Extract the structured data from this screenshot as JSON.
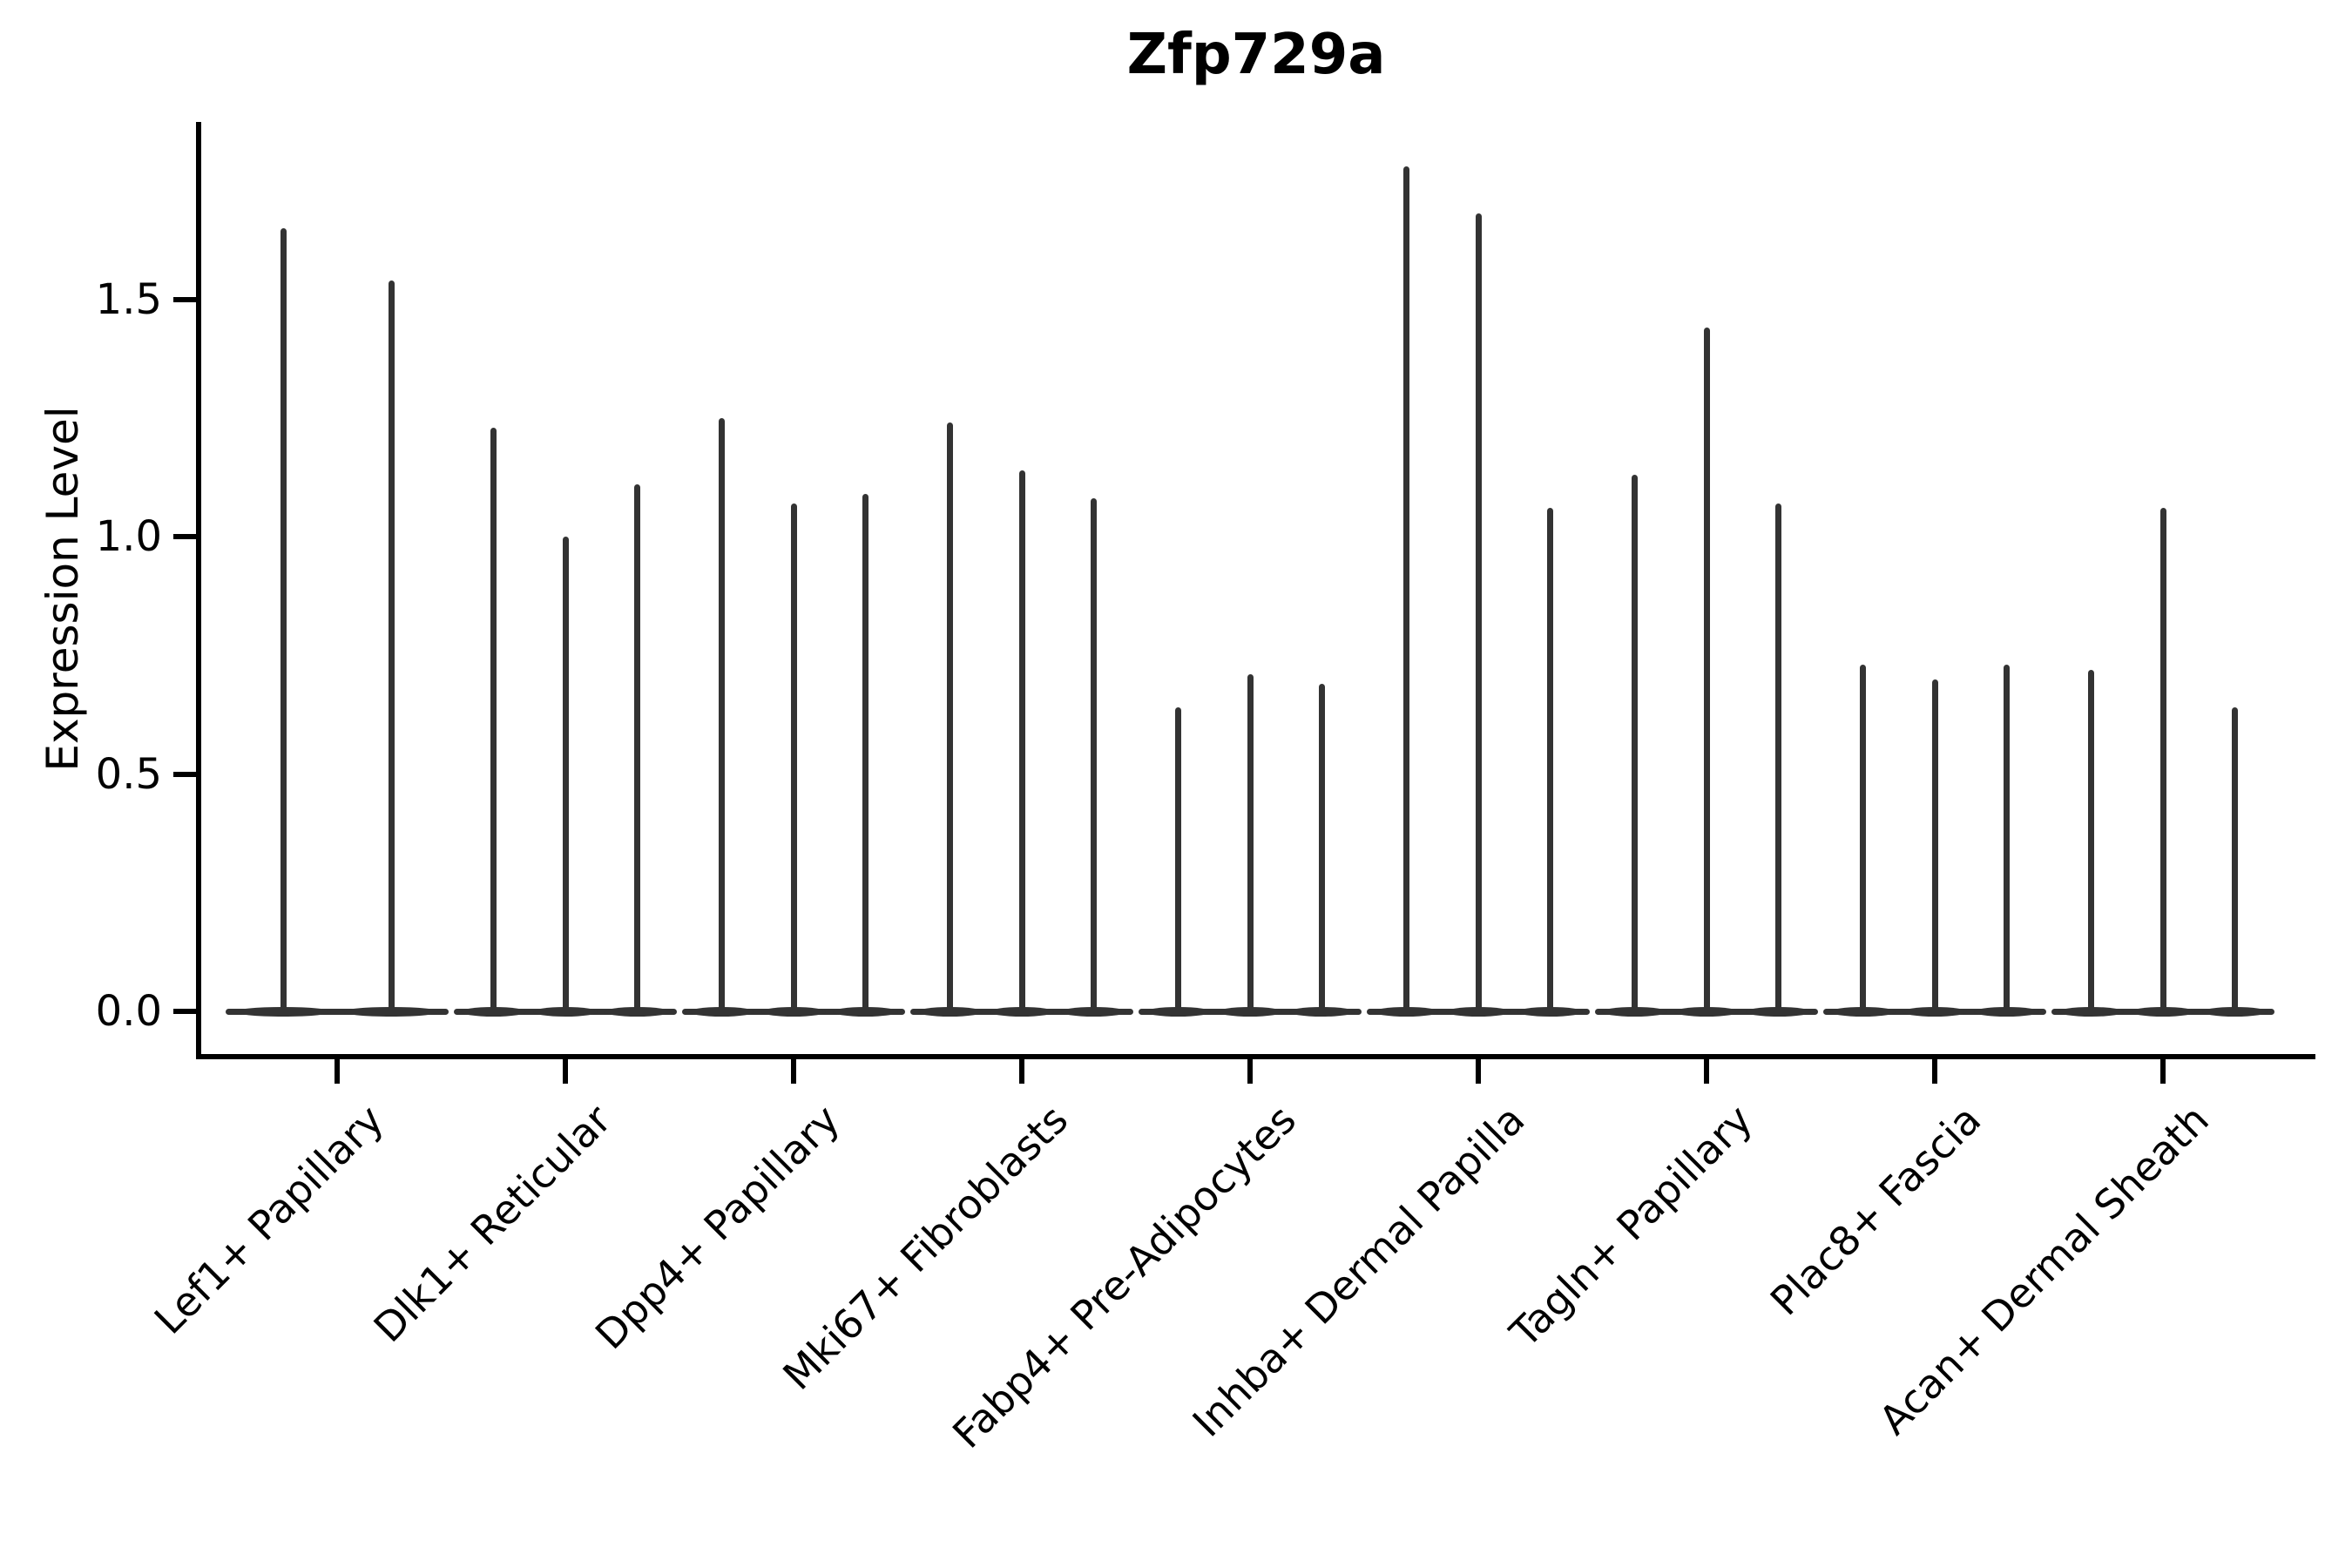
{
  "title": "Zfp729a",
  "y_axis": {
    "label": "Expression Level"
  },
  "chart_data": {
    "type": "violin",
    "title": "Zfp729a",
    "xlabel": "",
    "ylabel": "Expression Level",
    "ylim": [
      -0.09,
      1.87
    ],
    "yticks": [
      0.0,
      0.5,
      1.0,
      1.5
    ],
    "grid": false,
    "legend": "none",
    "style_note": "thin dark-gray violin spikes rising from flat bases at expression 0; black left/bottom spines only; x tick labels rotated 45 degrees",
    "categories": [
      "Lef1+ Papillary",
      "Dlk1+ Reticular",
      "Dpp4+ Papillary",
      "Mki67+ Fibroblasts",
      "Fabp4+ Pre-Adipocytes",
      "Inhba+ Dermal Papilla",
      "Tagln+ Papillary",
      "Plac8+ Fascia",
      "Acan+ Dermal Sheath"
    ],
    "series": [
      {
        "category": "Lef1+ Papillary",
        "violin_peaks": [
          1.65,
          1.54
        ]
      },
      {
        "category": "Dlk1+ Reticular",
        "violin_peaks": [
          1.23,
          1.0,
          1.11
        ]
      },
      {
        "category": "Dpp4+ Papillary",
        "violin_peaks": [
          1.25,
          1.07,
          1.09
        ]
      },
      {
        "category": "Mki67+ Fibroblasts",
        "violin_peaks": [
          1.24,
          1.14,
          1.08
        ]
      },
      {
        "category": "Fabp4+ Pre-Adipocytes",
        "violin_peaks": [
          0.64,
          0.71,
          0.69
        ]
      },
      {
        "category": "Inhba+ Dermal Papilla",
        "violin_peaks": [
          1.78,
          1.68,
          1.06
        ]
      },
      {
        "category": "Tagln+ Papillary",
        "violin_peaks": [
          1.13,
          1.44,
          1.07
        ]
      },
      {
        "category": "Plac8+ Fascia",
        "violin_peaks": [
          0.73,
          0.7,
          0.73
        ]
      },
      {
        "category": "Acan+ Dermal Sheath",
        "violin_peaks": [
          0.72,
          1.06,
          0.64
        ]
      }
    ],
    "colors": {
      "violin": "#333333",
      "spine": "#000000",
      "text": "#000000",
      "background": "#ffffff"
    }
  }
}
